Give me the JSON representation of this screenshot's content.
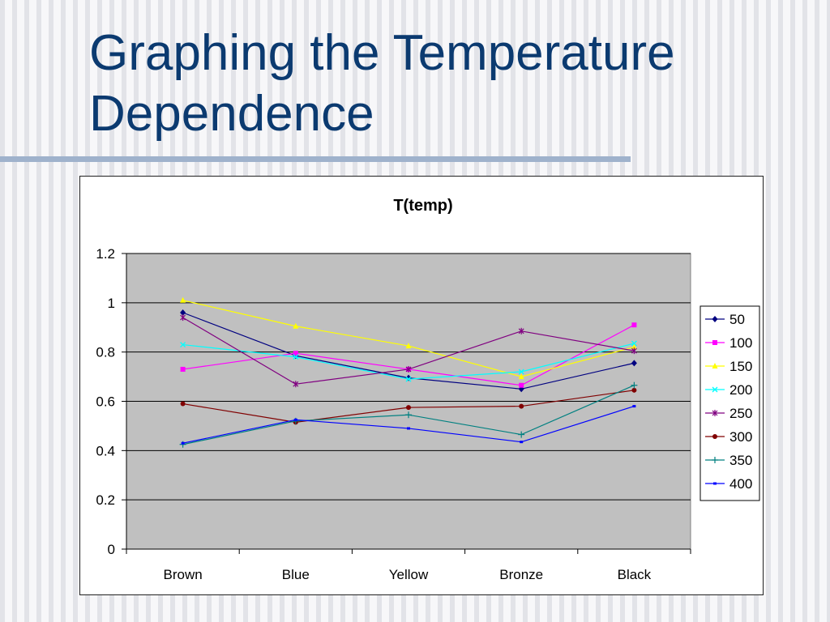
{
  "slide": {
    "title_line1": "Graphing the Temperature",
    "title_line2": "Dependence"
  },
  "chart_data": {
    "type": "line",
    "title": "T(temp)",
    "xlabel": "",
    "ylabel": "",
    "categories": [
      "Brown",
      "Blue",
      "Yellow",
      "Bronze",
      "Black"
    ],
    "ylim": [
      0,
      1.2
    ],
    "yticks": [
      "0",
      "0.2",
      "0.4",
      "0.6",
      "0.8",
      "1",
      "1.2"
    ],
    "ytick_values": [
      0,
      0.2,
      0.4,
      0.6,
      0.8,
      1.0,
      1.2
    ],
    "grid": "horizontal",
    "plot_background": "#c0c0c0",
    "legend_position": "right",
    "series": [
      {
        "name": "50",
        "color": "#000080",
        "marker": "diamond",
        "values": [
          0.96,
          0.785,
          0.695,
          0.65,
          0.755
        ]
      },
      {
        "name": "100",
        "color": "#ff00ff",
        "marker": "square",
        "values": [
          0.73,
          0.795,
          0.73,
          0.665,
          0.91
        ]
      },
      {
        "name": "150",
        "color": "#ffff00",
        "marker": "triangle",
        "values": [
          1.01,
          0.905,
          0.825,
          0.7,
          0.82
        ]
      },
      {
        "name": "200",
        "color": "#00ffff",
        "marker": "x",
        "values": [
          0.83,
          0.78,
          0.69,
          0.72,
          0.835
        ]
      },
      {
        "name": "250",
        "color": "#800080",
        "marker": "star",
        "values": [
          0.94,
          0.67,
          0.73,
          0.885,
          0.805
        ]
      },
      {
        "name": "300",
        "color": "#800000",
        "marker": "circle",
        "values": [
          0.59,
          0.515,
          0.575,
          0.58,
          0.645
        ]
      },
      {
        "name": "350",
        "color": "#008080",
        "marker": "plus",
        "values": [
          0.425,
          0.52,
          0.545,
          0.465,
          0.665
        ]
      },
      {
        "name": "400",
        "color": "#0000ff",
        "marker": "dash",
        "values": [
          0.43,
          0.525,
          0.49,
          0.435,
          0.58
        ]
      }
    ]
  }
}
